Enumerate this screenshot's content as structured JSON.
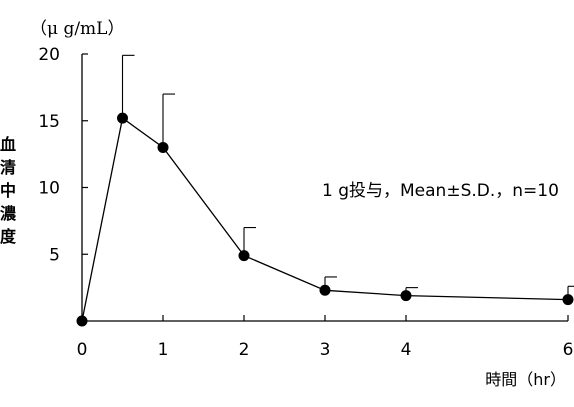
{
  "chart_data": {
    "type": "line",
    "y_unit": "（μ g/mL）",
    "ylabel": "血清中濃度",
    "xlabel": "時間（hr）",
    "annotation": "1 g投与，Mean±S.D.，n=10",
    "x_ticks": [
      "0",
      "1",
      "2",
      "3",
      "4",
      "6"
    ],
    "x_tick_values": [
      0,
      1,
      2,
      3,
      4,
      6
    ],
    "y_ticks": [
      "5",
      "10",
      "15",
      "20"
    ],
    "y_tick_values": [
      5,
      10,
      15,
      20
    ],
    "xlim": [
      0,
      6
    ],
    "ylim": [
      0,
      20
    ],
    "grid": false,
    "series": [
      {
        "x": [
          0,
          0.5,
          1,
          2,
          3,
          4,
          6
        ],
        "y": [
          0,
          15.2,
          13.0,
          4.9,
          2.3,
          1.9,
          1.6
        ],
        "sd": [
          0,
          4.7,
          4.0,
          2.1,
          1.0,
          0.6,
          1.0
        ],
        "color": "#000000",
        "marker": "filled-circle"
      }
    ]
  }
}
